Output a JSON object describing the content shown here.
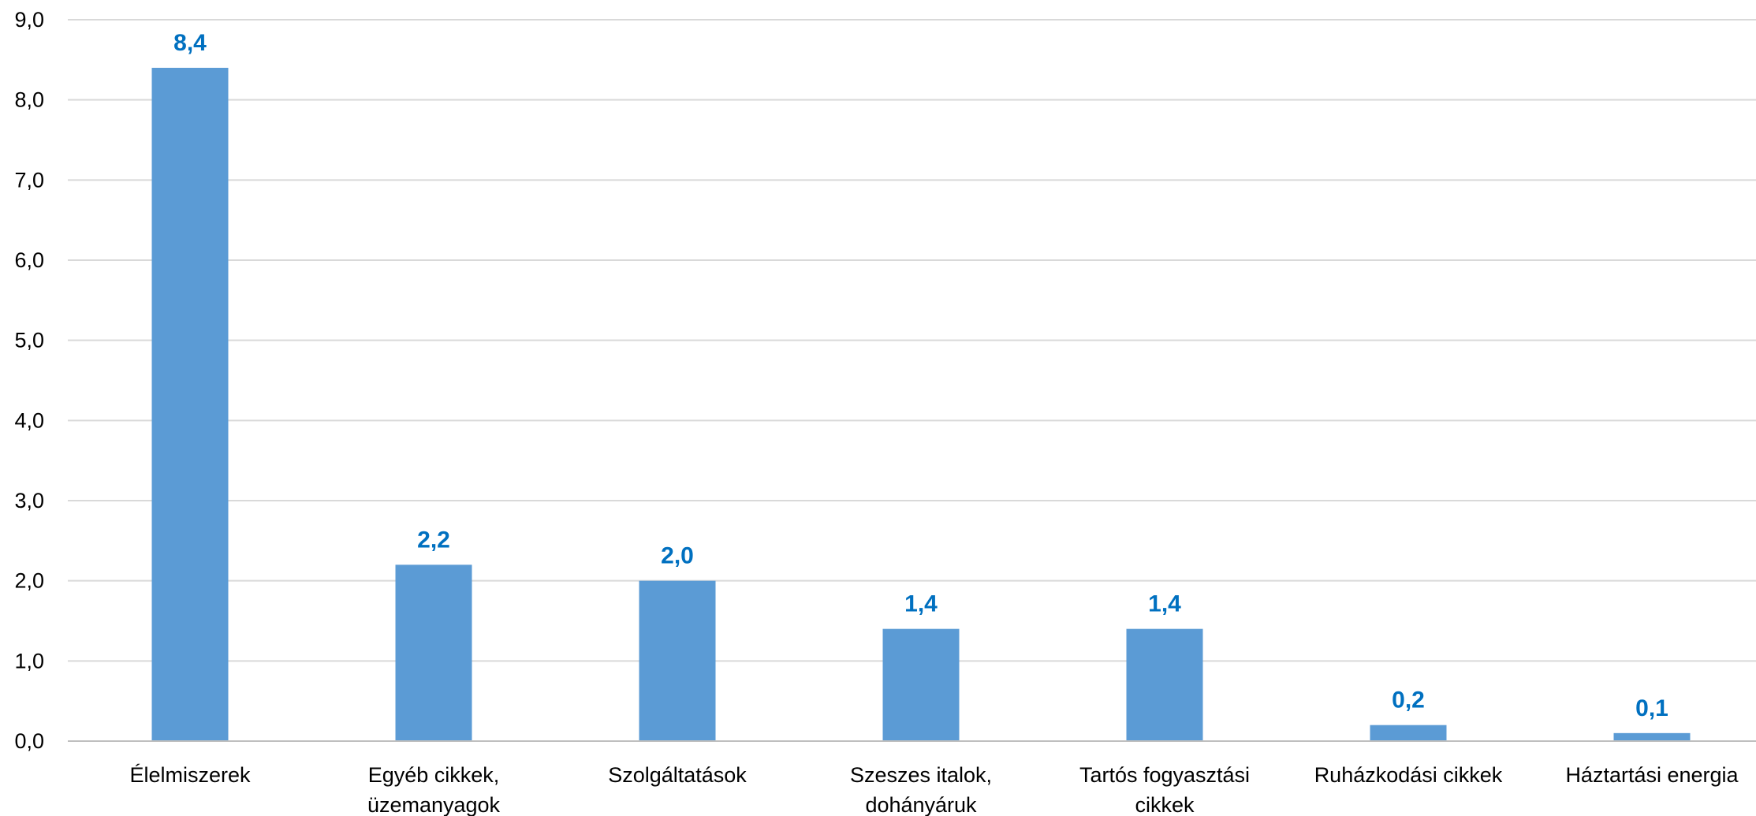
{
  "chart_data": {
    "type": "bar",
    "title": "",
    "xlabel": "",
    "ylabel": "",
    "ylim": [
      0,
      9
    ],
    "yticks": [
      0,
      1,
      2,
      3,
      4,
      5,
      6,
      7,
      8,
      9
    ],
    "ytick_labels": [
      "0,0",
      "1,0",
      "2,0",
      "3,0",
      "4,0",
      "5,0",
      "6,0",
      "7,0",
      "8,0",
      "9,0"
    ],
    "grid": true,
    "legend": "none",
    "categories": [
      [
        "Élelmiszerek"
      ],
      [
        "Egyéb cikkek,",
        "üzemanyagok"
      ],
      [
        "Szolgáltatások"
      ],
      [
        "Szeszes italok,",
        "dohányáruk"
      ],
      [
        "Tartós fogyasztási",
        "cikkek"
      ],
      [
        "Ruházkodási cikkek"
      ],
      [
        "Háztartási energia"
      ]
    ],
    "values": [
      8.4,
      2.2,
      2.0,
      1.4,
      1.4,
      0.2,
      0.1
    ],
    "data_labels": [
      "8,4",
      "2,2",
      "2,0",
      "1,4",
      "1,4",
      "0,2",
      "0,1"
    ],
    "colors": {
      "bar": "#5B9BD5",
      "data_label": "#0070C0",
      "grid": "#D9D9D9",
      "axis": "#BFBFBF"
    }
  }
}
